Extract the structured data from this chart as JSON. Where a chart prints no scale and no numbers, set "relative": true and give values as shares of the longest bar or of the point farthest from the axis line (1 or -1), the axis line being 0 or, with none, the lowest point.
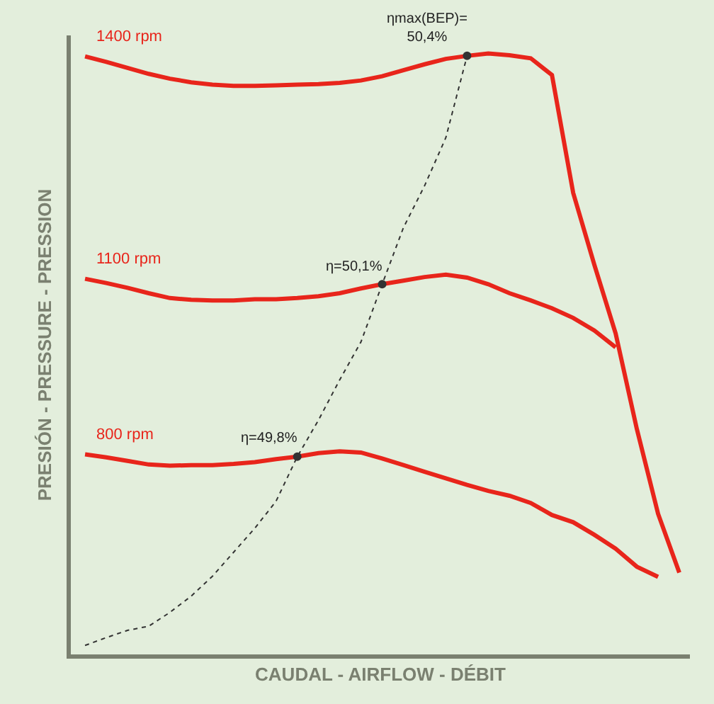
{
  "chart_data": {
    "type": "line",
    "relative": true,
    "categories": [
      null,
      null,
      null,
      null,
      null,
      null,
      null,
      null,
      null,
      null,
      null,
      null,
      null,
      null,
      null,
      null,
      null,
      null,
      null,
      null,
      null,
      null,
      null,
      null,
      null,
      null,
      null,
      null,
      null
    ],
    "xlabel": "CAUDAL - AIRFLOW - DÉBIT",
    "ylabel": "PRESIÓN - PRESSURE - PRESSION",
    "series": [
      {
        "name": "1400 rpm",
        "color": "#e8251b",
        "values": [
          0.995,
          0.986,
          0.976,
          0.966,
          0.958,
          0.952,
          0.948,
          0.946,
          0.946,
          0.947,
          0.948,
          0.949,
          0.951,
          0.955,
          0.962,
          0.972,
          0.982,
          0.991,
          0.996,
          1,
          0.997,
          0.992,
          0.964,
          0.768,
          0.648,
          0.534,
          0.375,
          0.234,
          0.136
        ]
      },
      {
        "name": "1100 rpm",
        "color": "#e8251b",
        "values": [
          0.625,
          0.618,
          0.61,
          0.601,
          0.593,
          0.59,
          0.589,
          0.589,
          0.591,
          0.591,
          0.593,
          0.596,
          0.601,
          0.609,
          0.616,
          0.622,
          0.628,
          0.632,
          0.627,
          0.616,
          0.601,
          0.589,
          0.576,
          0.56,
          0.539,
          0.511,
          null,
          null,
          null
        ]
      },
      {
        "name": "800 rpm",
        "color": "#e8251b",
        "values": [
          0.333,
          0.328,
          0.322,
          0.316,
          0.314,
          0.315,
          0.315,
          0.317,
          0.32,
          0.325,
          0.329,
          0.335,
          0.338,
          0.336,
          0.326,
          0.315,
          0.304,
          0.293,
          0.282,
          0.272,
          0.264,
          0.252,
          0.232,
          0.22,
          0.199,
          0.176,
          0.146,
          0.129,
          null
        ]
      },
      {
        "color": "#333333",
        "line_style": "dotted",
        "values": [
          0.015,
          0.028,
          0.04,
          0.047,
          0.07,
          0.097,
          0.13,
          0.17,
          0.21,
          0.255,
          0.329,
          0.39,
          0.457,
          0.52,
          0.616,
          0.71,
          0.78,
          0.86,
          0.996,
          null,
          null,
          null,
          null,
          null,
          null,
          null,
          null,
          null,
          null
        ]
      }
    ],
    "annotations": [
      "ηmax(BEP)=\n50,4%",
      "η=50,1%",
      "η=49,8%"
    ],
    "legend": false,
    "grid": false,
    "tick_labels": false
  }
}
